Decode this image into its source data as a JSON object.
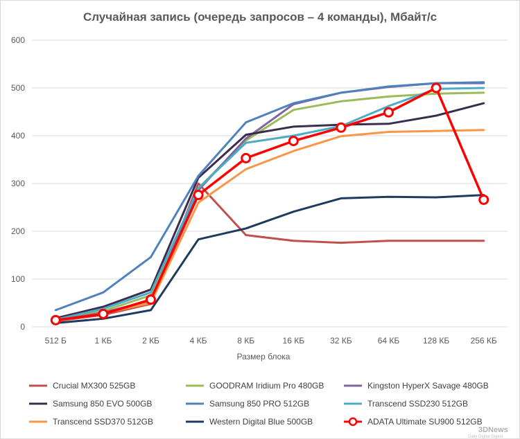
{
  "chart_data": {
    "type": "line",
    "title": "Случайная запись (очередь запросов – 4 команды), Мбайт/с",
    "xlabel": "Размер блока",
    "ylabel": "",
    "categories": [
      "512 Б",
      "1 КБ",
      "2 КБ",
      "4 КБ",
      "8 КБ",
      "16 КБ",
      "32 КБ",
      "64 КБ",
      "128 КБ",
      "256 КБ"
    ],
    "ylim": [
      0,
      600
    ],
    "yticks": [
      0,
      100,
      200,
      300,
      400,
      500,
      600
    ],
    "grid": true,
    "legend_position": "bottom",
    "series": [
      {
        "name": "Crucial MX300 525GB",
        "color": "#c0504d",
        "values": [
          12,
          25,
          48,
          300,
          192,
          180,
          176,
          180,
          180,
          180
        ]
      },
      {
        "name": "GOODRAM Iridium Pro 480GB",
        "color": "#9bbb59",
        "values": [
          15,
          33,
          66,
          290,
          390,
          454,
          472,
          482,
          488,
          490
        ]
      },
      {
        "name": "Kingston HyperX Savage 480GB",
        "color": "#8064a2",
        "values": [
          13,
          30,
          55,
          286,
          394,
          466,
          490,
          502,
          510,
          510
        ]
      },
      {
        "name": "Samsung 850 EVO 500GB",
        "color": "#3a2c4e",
        "values": [
          18,
          42,
          78,
          312,
          402,
          419,
          423,
          425,
          442,
          468
        ]
      },
      {
        "name": "Samsung 850 PRO 512GB",
        "color": "#4f81bd",
        "values": [
          35,
          72,
          146,
          316,
          428,
          468,
          490,
          503,
          510,
          512
        ]
      },
      {
        "name": "Transcend SSD230 512GB",
        "color": "#4bacc6",
        "values": [
          15,
          38,
          72,
          290,
          385,
          400,
          420,
          462,
          498,
          500
        ]
      },
      {
        "name": "Transcend SSD370 512GB",
        "color": "#f79646",
        "values": [
          14,
          28,
          50,
          260,
          330,
          368,
          399,
          408,
          410,
          412
        ]
      },
      {
        "name": "Western Digital Blue 500GB",
        "color": "#1f3a5f",
        "values": [
          8,
          17,
          35,
          183,
          206,
          241,
          269,
          272,
          271,
          276
        ]
      },
      {
        "name": "ADATA Ultimate SU900 512GB",
        "color": "#ff0000",
        "marker": "circle",
        "values": [
          14,
          27,
          57,
          276,
          353,
          389,
          417,
          449,
          500,
          266
        ]
      }
    ]
  },
  "watermark": {
    "logo_text": "3DNews",
    "tagline": "Daily Digital Digest"
  }
}
